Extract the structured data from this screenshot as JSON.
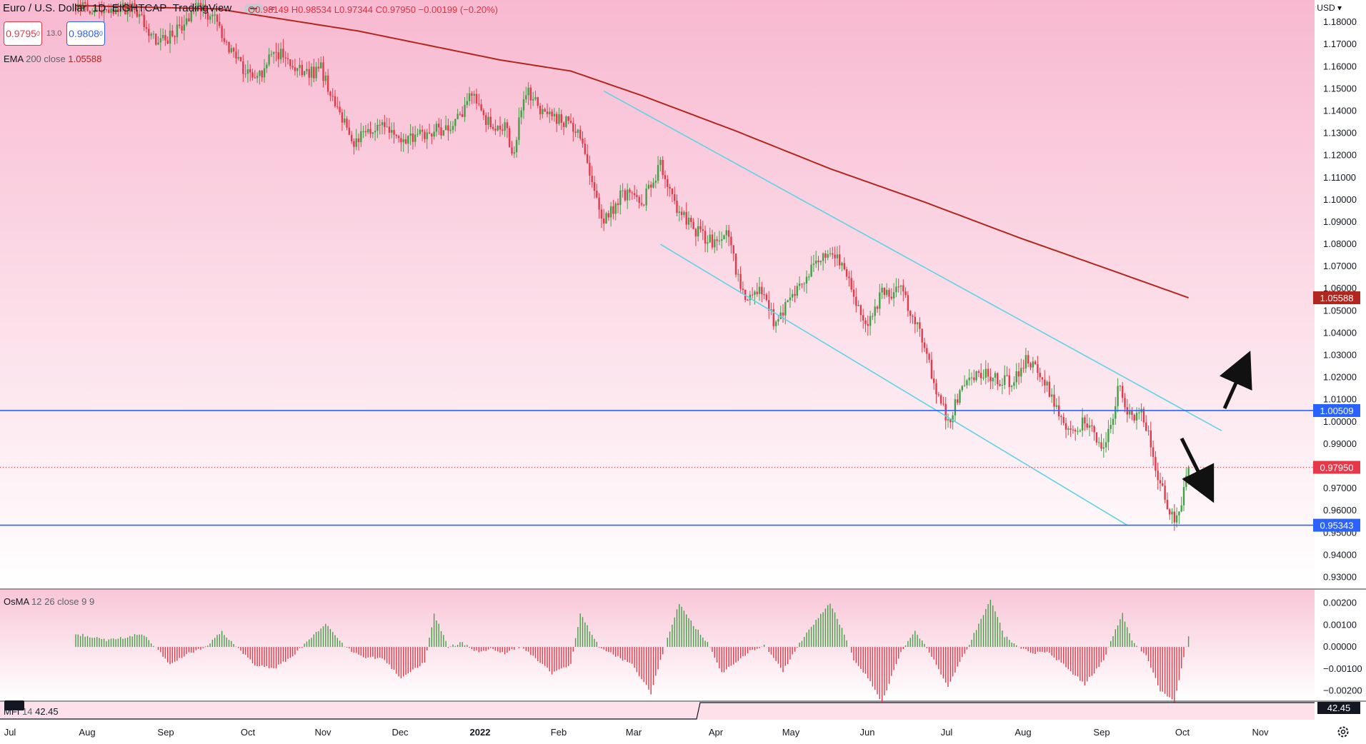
{
  "header": {
    "symbol": "Euro / U.S. Dollar",
    "interval": "1D",
    "exchange": "EIGHTCAP",
    "source": "TradingView",
    "ohlc": {
      "open": "O0.98149",
      "high": "H0.98534",
      "low": "L0.97344",
      "close": "C0.97950",
      "change": "−0.00199 (−0.20%)"
    },
    "bid": "0.9795",
    "bid_sup": "0",
    "spread": "13.0",
    "ask": "0.9808",
    "ask_sup": "0",
    "currency": "USD"
  },
  "indicators": {
    "ema": {
      "name": "EMA",
      "params": "200 close",
      "value": "1.05588"
    },
    "osma": {
      "name": "OsMA",
      "params": "12 26 close 9 9"
    },
    "mfi": {
      "name": "MFI",
      "params": "14",
      "value": "42.45"
    }
  },
  "colors": {
    "up": "#43a047",
    "down": "#e53949",
    "ema": "#b3261e",
    "channel": "#5fd3e6",
    "level": "#2962ff",
    "price_line": "#e53949",
    "bg_top": "#f8b9d0",
    "bg_bottom": "#ffffff"
  },
  "chart_data": {
    "type": "candlestick",
    "y_ticks": [
      "1.18000",
      "1.17000",
      "1.16000",
      "1.15000",
      "1.14000",
      "1.13000",
      "1.12000",
      "1.11000",
      "1.10000",
      "1.09000",
      "1.08000",
      "1.07000",
      "1.06000",
      "1.05000",
      "1.04000",
      "1.03000",
      "1.02000",
      "1.01000",
      "1.00000",
      "0.99000",
      "0.98000",
      "0.97000",
      "0.96000",
      "0.95000",
      "0.94000",
      "0.93000"
    ],
    "ylim": [
      0.925,
      1.19
    ],
    "x_labels": [
      "Jul",
      "Aug",
      "Sep",
      "Oct",
      "Nov",
      "Dec",
      "2022",
      "Feb",
      "Mar",
      "Apr",
      "May",
      "Jun",
      "Jul",
      "Aug",
      "Sep",
      "Oct",
      "Nov"
    ],
    "price_labels": [
      {
        "label": "1.05588",
        "value": 1.05588,
        "color": "#b3261e"
      },
      {
        "label": "1.00509",
        "value": 1.00509,
        "color": "#2962ff"
      },
      {
        "label": "0.97950",
        "value": 0.9795,
        "color": "#e53949"
      },
      {
        "label": "0.95343",
        "value": 0.95343,
        "color": "#2962ff"
      }
    ],
    "horizontal_levels": [
      1.00509,
      0.95343
    ],
    "last_price": 0.9795,
    "path_points": [
      [
        0,
        1.187
      ],
      [
        25,
        1.186
      ],
      [
        35,
        1.17
      ],
      [
        45,
        1.178
      ],
      [
        52,
        1.186
      ],
      [
        58,
        1.183
      ],
      [
        62,
        1.174
      ],
      [
        70,
        1.16
      ],
      [
        78,
        1.156
      ],
      [
        84,
        1.167
      ],
      [
        92,
        1.162
      ],
      [
        98,
        1.156
      ],
      [
        104,
        1.159
      ],
      [
        110,
        1.144
      ],
      [
        118,
        1.124
      ],
      [
        124,
        1.132
      ],
      [
        132,
        1.134
      ],
      [
        140,
        1.127
      ],
      [
        150,
        1.131
      ],
      [
        160,
        1.132
      ],
      [
        168,
        1.147
      ],
      [
        175,
        1.135
      ],
      [
        182,
        1.133
      ],
      [
        186,
        1.12
      ],
      [
        188,
        1.138
      ],
      [
        192,
        1.148
      ],
      [
        200,
        1.137
      ],
      [
        208,
        1.135
      ],
      [
        214,
        1.128
      ],
      [
        220,
        1.105
      ],
      [
        224,
        1.09
      ],
      [
        232,
        1.103
      ],
      [
        240,
        1.098
      ],
      [
        248,
        1.116
      ],
      [
        254,
        1.097
      ],
      [
        262,
        1.087
      ],
      [
        270,
        1.081
      ],
      [
        276,
        1.085
      ],
      [
        280,
        1.069
      ],
      [
        284,
        1.056
      ],
      [
        292,
        1.059
      ],
      [
        296,
        1.046
      ],
      [
        303,
        1.054
      ],
      [
        312,
        1.069
      ],
      [
        318,
        1.076
      ],
      [
        324,
        1.072
      ],
      [
        327,
        1.068
      ],
      [
        330,
        1.054
      ],
      [
        336,
        1.045
      ],
      [
        342,
        1.058
      ],
      [
        350,
        1.059
      ],
      [
        356,
        1.046
      ],
      [
        360,
        1.035
      ],
      [
        364,
        1.016
      ],
      [
        370,
        1.0
      ],
      [
        374,
        1.01
      ],
      [
        380,
        1.021
      ],
      [
        386,
        1.021
      ],
      [
        392,
        1.018
      ],
      [
        398,
        1.018
      ],
      [
        404,
        1.029
      ],
      [
        408,
        1.022
      ],
      [
        412,
        1.017
      ],
      [
        418,
        1.0
      ],
      [
        424,
        0.994
      ],
      [
        428,
        1.002
      ],
      [
        432,
        0.994
      ],
      [
        436,
        0.989
      ],
      [
        440,
        1.004
      ],
      [
        443,
        1.018
      ],
      [
        446,
        1.004
      ],
      [
        452,
        1.003
      ],
      [
        456,
        0.99
      ],
      [
        460,
        0.972
      ],
      [
        464,
        0.96
      ],
      [
        467,
        0.955
      ],
      [
        470,
        0.968
      ],
      [
        472,
        0.9795
      ]
    ],
    "ema200_points": [
      [
        0,
        1.1875
      ],
      [
        60,
        1.186
      ],
      [
        120,
        1.176
      ],
      [
        180,
        1.163
      ],
      [
        210,
        1.158
      ],
      [
        240,
        1.147
      ],
      [
        280,
        1.131
      ],
      [
        320,
        1.114
      ],
      [
        360,
        1.099
      ],
      [
        400,
        1.083
      ],
      [
        440,
        1.068
      ],
      [
        472,
        1.05588
      ]
    ],
    "channel": {
      "upper": [
        [
          224,
          1.149
        ],
        [
          486,
          0.996
        ]
      ],
      "lower": [
        [
          248,
          1.08
        ],
        [
          446,
          0.95343
        ]
      ]
    },
    "osma_ticks": [
      "0.00200",
      "0.00100",
      "0.00000",
      "−0.00100",
      "−0.00200"
    ],
    "osma_ylim": [
      -0.0024,
      0.0026
    ],
    "osma_points": [
      [
        0,
        0.0006
      ],
      [
        14,
        0.0003
      ],
      [
        28,
        0.0006
      ],
      [
        34,
        0.0
      ],
      [
        40,
        -0.0008
      ],
      [
        48,
        -0.0003
      ],
      [
        55,
        0.0
      ],
      [
        62,
        0.0007
      ],
      [
        68,
        0.0
      ],
      [
        76,
        -0.0008
      ],
      [
        84,
        -0.001
      ],
      [
        92,
        -0.0004
      ],
      [
        98,
        0.0002
      ],
      [
        106,
        0.0011
      ],
      [
        114,
        0.0
      ],
      [
        122,
        -0.0005
      ],
      [
        130,
        -0.0005
      ],
      [
        138,
        -0.0014
      ],
      [
        148,
        -0.0007
      ],
      [
        152,
        0.0015
      ],
      [
        158,
        0.0
      ],
      [
        164,
        0.0002
      ],
      [
        170,
        -0.0002
      ],
      [
        176,
        -0.0001
      ],
      [
        182,
        -0.0003
      ],
      [
        188,
        0.0
      ],
      [
        194,
        -0.0004
      ],
      [
        202,
        -0.0012
      ],
      [
        210,
        -0.0008
      ],
      [
        214,
        0.0015
      ],
      [
        222,
        0.0
      ],
      [
        236,
        -0.0008
      ],
      [
        244,
        -0.0021
      ],
      [
        248,
        -0.0006
      ],
      [
        256,
        0.002
      ],
      [
        262,
        0.001
      ],
      [
        268,
        0.0002
      ],
      [
        274,
        -0.0012
      ],
      [
        286,
        -0.0002
      ],
      [
        292,
        0.0001
      ],
      [
        300,
        -0.0011
      ],
      [
        306,
        0.0
      ],
      [
        312,
        0.0009
      ],
      [
        320,
        0.002
      ],
      [
        326,
        0.0006
      ],
      [
        330,
        -0.0006
      ],
      [
        336,
        -0.0014
      ],
      [
        342,
        -0.0025
      ],
      [
        350,
        -0.0002
      ],
      [
        356,
        0.0007
      ],
      [
        362,
        -0.0002
      ],
      [
        370,
        -0.0018
      ],
      [
        376,
        -0.0005
      ],
      [
        382,
        0.0008
      ],
      [
        388,
        0.0022
      ],
      [
        394,
        0.0005
      ],
      [
        400,
        0.0
      ],
      [
        406,
        -0.0003
      ],
      [
        412,
        -0.0002
      ],
      [
        420,
        -0.0009
      ],
      [
        428,
        -0.0017
      ],
      [
        436,
        -0.0006
      ],
      [
        440,
        0.0005
      ],
      [
        444,
        0.0015
      ],
      [
        448,
        0.0003
      ],
      [
        454,
        -0.0004
      ],
      [
        460,
        -0.002
      ],
      [
        466,
        -0.0025
      ],
      [
        472,
        0.0005
      ]
    ]
  }
}
